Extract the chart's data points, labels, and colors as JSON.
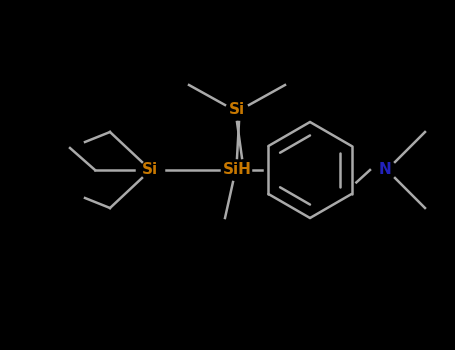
{
  "background_color": "#000000",
  "si_color": "#c87800",
  "n_color": "#2222bb",
  "bond_color": "#aaaaaa",
  "white_color": "#cccccc",
  "figsize": [
    4.55,
    3.5
  ],
  "dpi": 100,
  "si1_label": "Si",
  "si2_label": "SiH",
  "si3_label": "Si",
  "n_label": "N"
}
